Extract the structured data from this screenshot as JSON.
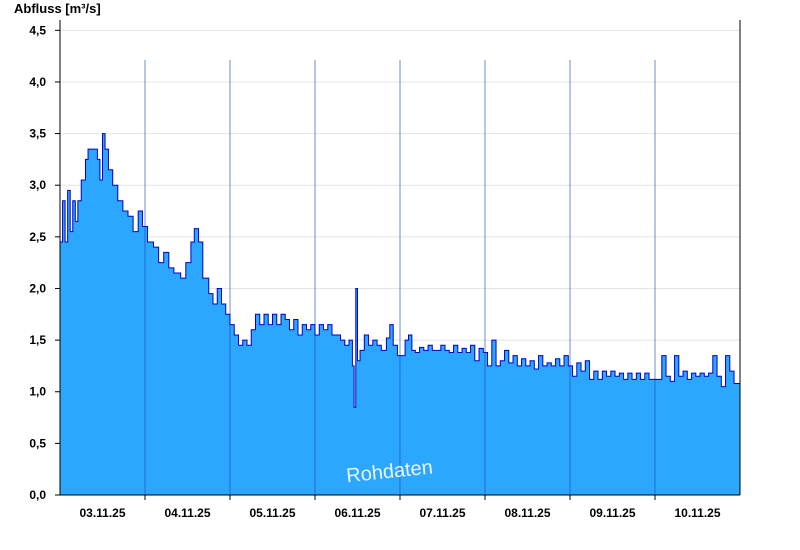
{
  "chart_data": {
    "type": "area",
    "ylabel": "Abfluss [m³/s]",
    "watermark": "Rohdaten",
    "ylim": [
      0,
      4.6
    ],
    "xlim": [
      0,
      8.0
    ],
    "yticks": [
      {
        "value": 0.0,
        "label": "0,0"
      },
      {
        "value": 0.5,
        "label": "0,5"
      },
      {
        "value": 1.0,
        "label": "1,0"
      },
      {
        "value": 1.5,
        "label": "1,5"
      },
      {
        "value": 2.0,
        "label": "2,0"
      },
      {
        "value": 2.5,
        "label": "2,5"
      },
      {
        "value": 3.0,
        "label": "3,0"
      },
      {
        "value": 3.5,
        "label": "3,5"
      },
      {
        "value": 4.0,
        "label": "4,0"
      },
      {
        "value": 4.5,
        "label": "4,5"
      }
    ],
    "xticks": [
      {
        "value": 0.5,
        "label": "03.11.25"
      },
      {
        "value": 1.5,
        "label": "04.11.25"
      },
      {
        "value": 2.5,
        "label": "05.11.25"
      },
      {
        "value": 3.5,
        "label": "06.11.25"
      },
      {
        "value": 4.5,
        "label": "07.11.25"
      },
      {
        "value": 5.5,
        "label": "08.11.25"
      },
      {
        "value": 6.5,
        "label": "09.11.25"
      },
      {
        "value": 7.5,
        "label": "10.11.25"
      }
    ],
    "day_boundaries": [
      1,
      2,
      3,
      4,
      5,
      6,
      7
    ],
    "grid": true,
    "fill_color": "#2ca7ff",
    "line_color": "#0000cc",
    "series": [
      {
        "values": [
          [
            0.0,
            2.45
          ],
          [
            0.03,
            2.85
          ],
          [
            0.06,
            2.45
          ],
          [
            0.09,
            2.95
          ],
          [
            0.12,
            2.55
          ],
          [
            0.15,
            2.85
          ],
          [
            0.18,
            2.65
          ],
          [
            0.21,
            2.85
          ],
          [
            0.25,
            3.05
          ],
          [
            0.3,
            3.25
          ],
          [
            0.33,
            3.35
          ],
          [
            0.4,
            3.35
          ],
          [
            0.44,
            3.25
          ],
          [
            0.47,
            3.05
          ],
          [
            0.5,
            3.5
          ],
          [
            0.53,
            3.35
          ],
          [
            0.57,
            3.15
          ],
          [
            0.62,
            3.0
          ],
          [
            0.68,
            2.85
          ],
          [
            0.74,
            2.75
          ],
          [
            0.8,
            2.7
          ],
          [
            0.86,
            2.55
          ],
          [
            0.92,
            2.75
          ],
          [
            0.97,
            2.6
          ],
          [
            1.03,
            2.45
          ],
          [
            1.1,
            2.4
          ],
          [
            1.16,
            2.25
          ],
          [
            1.22,
            2.35
          ],
          [
            1.28,
            2.2
          ],
          [
            1.34,
            2.15
          ],
          [
            1.42,
            2.1
          ],
          [
            1.48,
            2.25
          ],
          [
            1.54,
            2.45
          ],
          [
            1.58,
            2.58
          ],
          [
            1.63,
            2.45
          ],
          [
            1.68,
            2.1
          ],
          [
            1.75,
            1.95
          ],
          [
            1.8,
            1.85
          ],
          [
            1.85,
            2.0
          ],
          [
            1.9,
            1.85
          ],
          [
            1.95,
            1.75
          ],
          [
            2.0,
            1.65
          ],
          [
            2.05,
            1.55
          ],
          [
            2.1,
            1.45
          ],
          [
            2.15,
            1.5
          ],
          [
            2.2,
            1.45
          ],
          [
            2.25,
            1.6
          ],
          [
            2.3,
            1.75
          ],
          [
            2.35,
            1.65
          ],
          [
            2.4,
            1.75
          ],
          [
            2.45,
            1.65
          ],
          [
            2.5,
            1.75
          ],
          [
            2.55,
            1.65
          ],
          [
            2.6,
            1.75
          ],
          [
            2.65,
            1.7
          ],
          [
            2.7,
            1.6
          ],
          [
            2.75,
            1.7
          ],
          [
            2.8,
            1.55
          ],
          [
            2.85,
            1.65
          ],
          [
            2.9,
            1.6
          ],
          [
            2.95,
            1.65
          ],
          [
            3.0,
            1.55
          ],
          [
            3.05,
            1.65
          ],
          [
            3.1,
            1.6
          ],
          [
            3.15,
            1.65
          ],
          [
            3.2,
            1.55
          ],
          [
            3.25,
            1.55
          ],
          [
            3.3,
            1.5
          ],
          [
            3.35,
            1.45
          ],
          [
            3.4,
            1.5
          ],
          [
            3.44,
            1.25
          ],
          [
            3.46,
            0.85
          ],
          [
            3.48,
            2.0
          ],
          [
            3.5,
            1.3
          ],
          [
            3.53,
            1.4
          ],
          [
            3.58,
            1.55
          ],
          [
            3.63,
            1.45
          ],
          [
            3.68,
            1.5
          ],
          [
            3.73,
            1.45
          ],
          [
            3.78,
            1.4
          ],
          [
            3.84,
            1.52
          ],
          [
            3.88,
            1.65
          ],
          [
            3.92,
            1.45
          ],
          [
            3.97,
            1.35
          ],
          [
            4.02,
            1.35
          ],
          [
            4.06,
            1.5
          ],
          [
            4.1,
            1.55
          ],
          [
            4.14,
            1.4
          ],
          [
            4.18,
            1.38
          ],
          [
            4.23,
            1.43
          ],
          [
            4.28,
            1.4
          ],
          [
            4.33,
            1.45
          ],
          [
            4.38,
            1.4
          ],
          [
            4.43,
            1.4
          ],
          [
            4.48,
            1.45
          ],
          [
            4.53,
            1.4
          ],
          [
            4.58,
            1.38
          ],
          [
            4.63,
            1.45
          ],
          [
            4.68,
            1.38
          ],
          [
            4.73,
            1.42
          ],
          [
            4.78,
            1.38
          ],
          [
            4.83,
            1.45
          ],
          [
            4.88,
            1.3
          ],
          [
            4.93,
            1.42
          ],
          [
            4.98,
            1.38
          ],
          [
            5.03,
            1.25
          ],
          [
            5.08,
            1.5
          ],
          [
            5.13,
            1.25
          ],
          [
            5.18,
            1.3
          ],
          [
            5.23,
            1.4
          ],
          [
            5.28,
            1.28
          ],
          [
            5.33,
            1.35
          ],
          [
            5.38,
            1.25
          ],
          [
            5.43,
            1.32
          ],
          [
            5.48,
            1.25
          ],
          [
            5.53,
            1.3
          ],
          [
            5.58,
            1.22
          ],
          [
            5.63,
            1.35
          ],
          [
            5.68,
            1.25
          ],
          [
            5.73,
            1.28
          ],
          [
            5.78,
            1.25
          ],
          [
            5.83,
            1.32
          ],
          [
            5.88,
            1.25
          ],
          [
            5.93,
            1.35
          ],
          [
            5.98,
            1.25
          ],
          [
            6.03,
            1.15
          ],
          [
            6.08,
            1.28
          ],
          [
            6.13,
            1.2
          ],
          [
            6.18,
            1.3
          ],
          [
            6.23,
            1.12
          ],
          [
            6.28,
            1.2
          ],
          [
            6.33,
            1.12
          ],
          [
            6.38,
            1.2
          ],
          [
            6.43,
            1.15
          ],
          [
            6.48,
            1.2
          ],
          [
            6.53,
            1.15
          ],
          [
            6.58,
            1.18
          ],
          [
            6.63,
            1.12
          ],
          [
            6.68,
            1.18
          ],
          [
            6.73,
            1.12
          ],
          [
            6.78,
            1.18
          ],
          [
            6.83,
            1.12
          ],
          [
            6.88,
            1.18
          ],
          [
            6.93,
            1.12
          ],
          [
            6.98,
            1.12
          ],
          [
            7.03,
            1.12
          ],
          [
            7.08,
            1.35
          ],
          [
            7.13,
            1.15
          ],
          [
            7.18,
            1.1
          ],
          [
            7.23,
            1.35
          ],
          [
            7.28,
            1.15
          ],
          [
            7.33,
            1.2
          ],
          [
            7.38,
            1.12
          ],
          [
            7.43,
            1.18
          ],
          [
            7.48,
            1.15
          ],
          [
            7.53,
            1.18
          ],
          [
            7.58,
            1.15
          ],
          [
            7.63,
            1.18
          ],
          [
            7.68,
            1.35
          ],
          [
            7.73,
            1.15
          ],
          [
            7.78,
            1.05
          ],
          [
            7.83,
            1.35
          ],
          [
            7.88,
            1.2
          ],
          [
            7.93,
            1.08
          ],
          [
            7.97,
            1.08
          ],
          [
            8.0,
            1.08
          ]
        ]
      }
    ]
  }
}
